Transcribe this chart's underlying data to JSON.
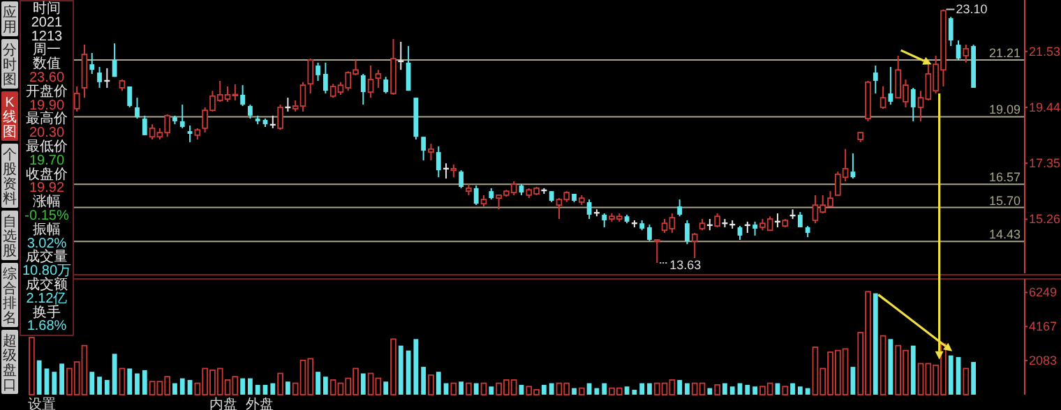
{
  "chart_data": [
    {
      "type": "candlestick",
      "categories": [
        null,
        null,
        null,
        null,
        null,
        null,
        null,
        null,
        null,
        null,
        null,
        null,
        null,
        null,
        null,
        null,
        null,
        null,
        null,
        null,
        null,
        null,
        null,
        null,
        null,
        null,
        null,
        null,
        null,
        null,
        null,
        null,
        null,
        null,
        null,
        null,
        null,
        null,
        null,
        null,
        null,
        null,
        null,
        null,
        null,
        null,
        null,
        null,
        null,
        null,
        null,
        null,
        null,
        null,
        null,
        null,
        null,
        null,
        null,
        null,
        null,
        null,
        null,
        null,
        null,
        null,
        null,
        null,
        null,
        null,
        null,
        null,
        null,
        null,
        null,
        null,
        null,
        null,
        null,
        null,
        null,
        null,
        null,
        null,
        null,
        null,
        null,
        null,
        null,
        null,
        null,
        null,
        null,
        null,
        null,
        null,
        null,
        null,
        null,
        null,
        null,
        null,
        null,
        null,
        null,
        null,
        null,
        null,
        null,
        null,
        null,
        null,
        null,
        null,
        null,
        null,
        null,
        null,
        null,
        null,
        null,
        null,
        null,
        null,
        null,
        null
      ],
      "ohlc": [
        null,
        null,
        null,
        null,
        null,
        null,
        [
          19.39,
          20.22,
          19.28,
          19.96
        ],
        [
          20.17,
          21.78,
          19.8,
          21.42
        ],
        [
          21.05,
          21.47,
          20.69,
          20.84
        ],
        [
          20.74,
          20.95,
          20.17,
          20.38
        ],
        [
          20.43,
          20.9,
          20.17,
          20.43
        ],
        [
          21.21,
          21.83,
          20.58,
          20.58
        ],
        [
          20.17,
          20.48,
          20.06,
          20.43
        ],
        [
          20.22,
          20.22,
          19.44,
          19.49
        ],
        [
          19.44,
          19.8,
          19.02,
          19.07
        ],
        [
          19.02,
          19.13,
          18.4,
          18.4
        ],
        [
          18.34,
          18.81,
          18.24,
          18.66
        ],
        [
          18.34,
          18.66,
          18.24,
          18.5
        ],
        [
          18.5,
          19.18,
          18.34,
          19.13
        ],
        [
          19.07,
          19.13,
          18.81,
          18.92
        ],
        [
          18.92,
          19.54,
          18.66,
          18.71
        ],
        [
          18.55,
          18.76,
          18.14,
          18.45
        ],
        [
          18.4,
          18.66,
          18.24,
          18.6
        ],
        [
          18.66,
          19.44,
          18.5,
          19.33
        ],
        [
          19.33,
          20.06,
          19.28,
          19.86
        ],
        [
          19.7,
          20.43,
          19.65,
          19.91
        ],
        [
          19.75,
          20.22,
          19.65,
          19.91
        ],
        [
          19.9,
          20.3,
          19.7,
          19.92
        ],
        [
          19.91,
          20.27,
          19.49,
          19.54
        ],
        [
          19.49,
          19.54,
          19.02,
          19.13
        ],
        [
          19.02,
          19.13,
          18.81,
          18.92
        ],
        [
          18.97,
          19.02,
          18.71,
          18.81
        ],
        [
          18.79,
          19.13,
          18.66,
          18.79
        ],
        [
          18.66,
          19.54,
          18.6,
          19.44
        ],
        [
          19.44,
          19.8,
          19.28,
          19.44
        ],
        [
          19.39,
          19.7,
          19.28,
          19.49
        ],
        [
          19.49,
          20.38,
          19.28,
          20.27
        ],
        [
          20.32,
          21.26,
          19.96,
          21.21
        ],
        [
          21.0,
          21.11,
          20.43,
          20.64
        ],
        [
          20.69,
          21.11,
          19.96,
          20.06
        ],
        [
          19.86,
          20.32,
          19.8,
          20.22
        ],
        [
          20.01,
          20.38,
          19.91,
          20.27
        ],
        [
          20.17,
          20.79,
          20.06,
          20.74
        ],
        [
          20.69,
          21.21,
          20.64,
          20.84
        ],
        [
          20.64,
          20.69,
          19.54,
          20.01
        ],
        [
          20.01,
          21.0,
          19.8,
          20.48
        ],
        [
          20.53,
          20.84,
          20.17,
          20.69
        ],
        [
          20.48,
          20.58,
          19.96,
          20.01
        ],
        [
          19.96,
          21.99,
          19.91,
          21.26
        ],
        [
          21.16,
          21.89,
          20.84,
          21.16
        ],
        [
          21.11,
          21.73,
          20.06,
          20.06
        ],
        [
          19.8,
          19.8,
          18.24,
          18.34
        ],
        [
          18.34,
          18.34,
          17.46,
          17.82
        ],
        [
          17.77,
          18.08,
          17.46,
          17.88
        ],
        [
          17.77,
          17.98,
          16.83,
          17.09
        ],
        [
          17.15,
          17.35,
          16.78,
          17.15
        ],
        [
          17.09,
          17.3,
          16.83,
          17.15
        ],
        [
          17.04,
          17.09,
          16.42,
          16.47
        ],
        [
          16.31,
          16.57,
          16.16,
          16.42
        ],
        [
          16.42,
          16.52,
          15.79,
          15.84
        ],
        [
          15.84,
          16.16,
          15.74,
          16.0
        ],
        [
          16.31,
          16.42,
          16.0,
          16.05
        ],
        [
          16.05,
          16.16,
          15.63,
          16.16
        ],
        [
          16.16,
          16.36,
          16.1,
          16.31
        ],
        [
          16.26,
          16.68,
          16.16,
          16.57
        ],
        [
          16.52,
          16.57,
          16.16,
          16.26
        ],
        [
          16.16,
          16.42,
          16.05,
          16.36
        ],
        [
          16.21,
          16.47,
          16.16,
          16.42
        ],
        [
          16.34,
          16.42,
          16.21,
          16.34
        ],
        [
          16.31,
          16.31,
          15.9,
          15.95
        ],
        [
          15.79,
          16.05,
          15.27,
          16.0
        ],
        [
          16.0,
          16.31,
          15.9,
          16.26
        ],
        [
          16.21,
          16.21,
          15.9,
          15.95
        ],
        [
          15.9,
          16.16,
          15.79,
          16.05
        ],
        [
          15.9,
          16.0,
          15.27,
          15.43
        ],
        [
          15.5,
          15.63,
          15.37,
          15.5
        ],
        [
          15.43,
          15.48,
          14.96,
          15.22
        ],
        [
          15.27,
          15.48,
          15.17,
          15.37
        ],
        [
          15.27,
          15.48,
          15.17,
          15.37
        ],
        [
          15.37,
          15.43,
          15.11,
          15.17
        ],
        [
          15.11,
          15.22,
          14.96,
          15.11
        ],
        [
          15.11,
          15.22,
          14.85,
          14.91
        ],
        [
          14.96,
          15.06,
          14.44,
          14.49
        ],
        [
          14.44,
          14.49,
          13.63,
          14.49
        ],
        [
          14.85,
          15.27,
          14.75,
          15.11
        ],
        [
          14.91,
          15.48,
          14.75,
          15.32
        ],
        [
          15.74,
          16.0,
          15.37,
          15.43
        ],
        [
          15.11,
          15.22,
          14.33,
          14.44
        ],
        [
          14.44,
          14.75,
          13.81,
          14.7
        ],
        [
          14.91,
          15.27,
          14.85,
          15.11
        ],
        [
          15.04,
          15.27,
          14.85,
          15.04
        ],
        [
          15.01,
          15.48,
          14.96,
          15.37
        ],
        [
          15.11,
          15.27,
          14.96,
          15.11
        ],
        [
          15.06,
          15.22,
          14.91,
          15.06
        ],
        [
          14.96,
          15.01,
          14.49,
          14.65
        ],
        [
          15.04,
          15.17,
          14.75,
          15.04
        ],
        [
          15.06,
          15.17,
          14.65,
          14.91
        ],
        [
          14.96,
          15.27,
          14.85,
          15.11
        ],
        [
          14.85,
          15.37,
          14.85,
          15.27
        ],
        [
          15.17,
          15.48,
          14.96,
          15.17
        ],
        [
          15.01,
          15.27,
          14.96,
          15.22
        ],
        [
          15.4,
          15.63,
          15.27,
          15.4
        ],
        [
          15.43,
          15.53,
          14.96,
          14.96
        ],
        [
          14.96,
          15.01,
          14.59,
          14.75
        ],
        [
          15.22,
          16.16,
          15.11,
          15.79
        ],
        [
          15.53,
          16.16,
          15.48,
          15.79
        ],
        [
          15.74,
          16.31,
          15.74,
          16.05
        ],
        [
          16.16,
          17.04,
          16.16,
          16.94
        ],
        [
          16.83,
          17.88,
          16.68,
          17.15
        ],
        [
          17.04,
          17.72,
          16.78,
          16.83
        ],
        [
          18.24,
          18.5,
          18.14,
          18.5
        ],
        [
          19.02,
          20.43,
          18.92,
          20.38
        ],
        [
          20.74,
          21.0,
          19.96,
          20.43
        ],
        [
          19.44,
          20.22,
          19.39,
          19.8
        ],
        [
          19.96,
          20.95,
          19.54,
          19.65
        ],
        [
          19.8,
          21.37,
          19.8,
          20.84
        ],
        [
          19.65,
          20.48,
          19.44,
          20.27
        ],
        [
          20.12,
          20.17,
          18.92,
          19.44
        ],
        [
          19.44,
          20.06,
          18.92,
          19.8
        ],
        [
          19.75,
          21.11,
          19.7,
          20.69
        ],
        [
          20.06,
          21.37,
          19.96,
          21.05
        ],
        [
          20.84,
          23.1,
          20.22,
          23.05
        ],
        [
          22.77,
          22.82,
          21.73,
          21.94
        ],
        [
          21.78,
          21.94,
          21.21,
          21.26
        ],
        [
          21.37,
          21.78,
          21.11,
          21.63
        ],
        [
          21.73,
          21.78,
          20.17,
          20.17
        ]
      ],
      "colors": [
        null,
        null,
        null,
        null,
        null,
        null,
        "#d03a36",
        "#d03a36",
        "#5ee6ec",
        "#5ee6ec",
        "#e6e6e6",
        "#5ee6ec",
        "#d03a36",
        "#5ee6ec",
        "#5ee6ec",
        "#5ee6ec",
        "#d03a36",
        "#d03a36",
        "#d03a36",
        "#5ee6ec",
        "#5ee6ec",
        "#5ee6ec",
        "#d03a36",
        "#d03a36",
        "#d03a36",
        "#d03a36",
        "#d03a36",
        "#d03a36",
        "#5ee6ec",
        "#5ee6ec",
        "#5ee6ec",
        "#5ee6ec",
        "#e6e6e6",
        "#d03a36",
        "#e6e6e6",
        "#d03a36",
        "#d03a36",
        "#d03a36",
        "#5ee6ec",
        "#5ee6ec",
        "#d03a36",
        "#d03a36",
        "#d03a36",
        "#d03a36",
        "#5ee6ec",
        "#d03a36",
        "#d03a36",
        "#5ee6ec",
        "#d03a36",
        "#e6e6e6",
        "#5ee6ec",
        "#5ee6ec",
        "#5ee6ec",
        "#d03a36",
        "#5ee6ec",
        "#e6e6e6",
        "#d03a36",
        "#5ee6ec",
        "#d03a36",
        "#5ee6ec",
        "#d03a36",
        "#5ee6ec",
        "#d03a36",
        "#d03a36",
        "#d03a36",
        "#5ee6ec",
        "#d03a36",
        "#d03a36",
        "#e6e6e6",
        "#5ee6ec",
        "#d03a36",
        "#d03a36",
        "#5ee6ec",
        "#d03a36",
        "#5ee6ec",
        "#e6e6e6",
        "#5ee6ec",
        "#d03a36",
        "#d03a36",
        "#5ee6ec",
        "#e6e6e6",
        "#5ee6ec",
        "#5ee6ec",
        "#d03a36",
        "#d03a36",
        "#d03a36",
        "#5ee6ec",
        "#5ee6ec",
        "#d03a36",
        "#d03a36",
        "#e6e6e6",
        "#d03a36",
        "#e6e6e6",
        "#e6e6e6",
        "#5ee6ec",
        "#e6e6e6",
        "#5ee6ec",
        "#d03a36",
        "#d03a36",
        "#e6e6e6",
        "#d03a36",
        "#e6e6e6",
        "#5ee6ec",
        "#5ee6ec",
        "#d03a36",
        "#d03a36",
        "#d03a36",
        "#d03a36",
        "#d03a36",
        "#5ee6ec",
        "#d03a36",
        "#d03a36",
        "#5ee6ec",
        "#d03a36",
        "#5ee6ec",
        "#d03a36",
        "#d03a36",
        "#5ee6ec",
        "#d03a36",
        "#d03a36",
        "#d03a36",
        "#d03a36",
        "#5ee6ec",
        "#5ee6ec",
        "#d03a36",
        "#5ee6ec"
      ],
      "ylim": [
        13.24,
        23.45
      ],
      "yticks": [
        {
          "value": 21.53,
          "label": "21.53"
        },
        {
          "value": 19.44,
          "label": "19.44"
        },
        {
          "value": 17.35,
          "label": "17.35"
        },
        {
          "value": 15.26,
          "label": "15.26"
        }
      ],
      "ref_lines": [
        {
          "axis": "y",
          "value": 21.21,
          "label": "21.21",
          "color": "#a9a48a"
        },
        {
          "axis": "y",
          "value": 19.09,
          "label": "19.09",
          "color": "#a9a48a"
        },
        {
          "axis": "y",
          "value": 16.57,
          "label": "16.57",
          "color": "#a9a48a"
        },
        {
          "axis": "y",
          "value": 15.7,
          "label": "15.70",
          "color": "#a9a48a"
        },
        {
          "axis": "y",
          "value": 14.43,
          "label": "14.43",
          "color": "#a9a48a"
        }
      ],
      "annotations": [
        "23.10",
        "13.63"
      ]
    },
    {
      "type": "bar",
      "categories": [
        null,
        null,
        null,
        null,
        null,
        null,
        null,
        null,
        null,
        null,
        null,
        null,
        null,
        null,
        null,
        null,
        null,
        null,
        null,
        null,
        null,
        null,
        null,
        null,
        null,
        null,
        null,
        null,
        null,
        null,
        null,
        null,
        null,
        null,
        null,
        null,
        null,
        null,
        null,
        null,
        null,
        null,
        null,
        null,
        null,
        null,
        null,
        null,
        null,
        null,
        null,
        null,
        null,
        null,
        null,
        null,
        null,
        null,
        null,
        null,
        null,
        null,
        null,
        null,
        null,
        null,
        null,
        null,
        null,
        null,
        null,
        null,
        null,
        null,
        null,
        null,
        null,
        null,
        null,
        null,
        null,
        null,
        null,
        null,
        null,
        null,
        null,
        null,
        null,
        null,
        null,
        null,
        null,
        null,
        null,
        null,
        null,
        null,
        null,
        null,
        null,
        null,
        null,
        null,
        null,
        null,
        null,
        null,
        null,
        null,
        null,
        null,
        null,
        null,
        null,
        null,
        null,
        null,
        null,
        null,
        null,
        null,
        null,
        null,
        null,
        null
      ],
      "values": [
        3500,
        2100,
        1600,
        1400,
        1900,
        1600,
        2000,
        3000,
        1400,
        1100,
        900,
        2500,
        1600,
        1600,
        1300,
        1500,
        800,
        800,
        1100,
        700,
        1000,
        900,
        700,
        1600,
        1500,
        1600,
        900,
        1100,
        1000,
        1000,
        600,
        600,
        700,
        1300,
        800,
        700,
        2100,
        2200,
        1400,
        1100,
        900,
        700,
        1000,
        1600,
        1300,
        1300,
        1000,
        800,
        3400,
        3000,
        2700,
        3400,
        1700,
        1200,
        1400,
        700,
        700,
        800,
        700,
        700,
        700,
        500,
        700,
        900,
        900,
        600,
        500,
        300,
        600,
        700,
        700,
        700,
        400,
        400,
        700,
        400,
        700,
        400,
        400,
        500,
        300,
        700,
        700,
        700,
        700,
        900,
        900,
        700,
        700,
        700,
        400,
        600,
        700,
        500,
        700,
        600,
        500,
        500,
        700,
        700,
        500,
        700,
        500,
        400,
        2900,
        1600,
        2600,
        2700,
        2800,
        1700,
        3800,
        6300,
        6200,
        3600,
        3400,
        3000,
        2700,
        3000,
        1900,
        1900,
        1800,
        3100,
        2400,
        2300,
        1600,
        2000
      ],
      "colors": [
        "#d03a36",
        "#5ee6ec",
        "#5ee6ec",
        "#5ee6ec",
        "#5ee6ec",
        "#d03a36",
        "#d03a36",
        "#d03a36",
        "#5ee6ec",
        "#5ee6ec",
        "#5ee6ec",
        "#5ee6ec",
        "#d03a36",
        "#5ee6ec",
        "#5ee6ec",
        "#5ee6ec",
        "#d03a36",
        "#d03a36",
        "#d03a36",
        "#5ee6ec",
        "#5ee6ec",
        "#5ee6ec",
        "#d03a36",
        "#d03a36",
        "#d03a36",
        "#d03a36",
        "#d03a36",
        "#d03a36",
        "#5ee6ec",
        "#5ee6ec",
        "#5ee6ec",
        "#5ee6ec",
        "#5ee6ec",
        "#d03a36",
        "#5ee6ec",
        "#d03a36",
        "#d03a36",
        "#d03a36",
        "#5ee6ec",
        "#5ee6ec",
        "#d03a36",
        "#d03a36",
        "#d03a36",
        "#d03a36",
        "#5ee6ec",
        "#d03a36",
        "#d03a36",
        "#5ee6ec",
        "#d03a36",
        "#5ee6ec",
        "#5ee6ec",
        "#5ee6ec",
        "#5ee6ec",
        "#d03a36",
        "#5ee6ec",
        "#5ee6ec",
        "#d03a36",
        "#5ee6ec",
        "#d03a36",
        "#5ee6ec",
        "#d03a36",
        "#5ee6ec",
        "#d03a36",
        "#d03a36",
        "#d03a36",
        "#5ee6ec",
        "#d03a36",
        "#d03a36",
        "#5ee6ec",
        "#5ee6ec",
        "#d03a36",
        "#d03a36",
        "#5ee6ec",
        "#d03a36",
        "#5ee6ec",
        "#5ee6ec",
        "#5ee6ec",
        "#d03a36",
        "#d03a36",
        "#5ee6ec",
        "#5ee6ec",
        "#5ee6ec",
        "#5ee6ec",
        "#d03a36",
        "#d03a36",
        "#d03a36",
        "#5ee6ec",
        "#5ee6ec",
        "#d03a36",
        "#d03a36",
        "#5ee6ec",
        "#d03a36",
        "#5ee6ec",
        "#5ee6ec",
        "#5ee6ec",
        "#5ee6ec",
        "#5ee6ec",
        "#d03a36",
        "#d03a36",
        "#5ee6ec",
        "#d03a36",
        "#5ee6ec",
        "#5ee6ec",
        "#5ee6ec",
        "#d03a36",
        "#d03a36",
        "#d03a36",
        "#d03a36",
        "#d03a36",
        "#5ee6ec",
        "#d03a36",
        "#d03a36",
        "#5ee6ec",
        "#d03a36",
        "#5ee6ec",
        "#d03a36",
        "#d03a36",
        "#5ee6ec",
        "#d03a36",
        "#d03a36",
        "#d03a36",
        "#d03a36",
        "#5ee6ec",
        "#5ee6ec",
        "#d03a36",
        "#5ee6ec"
      ],
      "ylim": [
        0,
        7080
      ],
      "yticks": [
        2083,
        4167,
        6249
      ]
    },
    {
      "type": "other",
      "annotations": [
        "应用",
        "分时图",
        "K线图",
        "个股资料",
        "自选股",
        "综合排名",
        "超级盘口"
      ],
      "colors": [
        "#c8c8c8",
        "#c8c8c8",
        "#c0302c",
        "#c8c8c8",
        "#c8c8c8",
        "#c8c8c8",
        "#c8c8c8"
      ]
    },
    {
      "type": "other",
      "annotations": [
        "时间",
        "2021",
        "1213",
        "周一",
        "数值",
        "23.60",
        "开盘价",
        "19.90",
        "最高价",
        "20.30",
        "最低价",
        "19.70",
        "收盘价",
        "19.92",
        "涨幅",
        "-0.15%",
        "振幅",
        "3.02%",
        "成交量",
        "10.80万",
        "成交额",
        "2.12亿",
        "换手",
        "1.68%"
      ],
      "colors": [
        "#e8e8e8",
        "#e8e8e8",
        "#e8e8e8",
        "#e8e8e8",
        "#e8e8e8",
        "#e04040",
        "#e8e8e8",
        "#e04040",
        "#e8e8e8",
        "#e04040",
        "#e8e8e8",
        "#3cc03c",
        "#e8e8e8",
        "#e04040",
        "#e8e8e8",
        "#3cc03c",
        "#e8e8e8",
        "#5ee6ec",
        "#e8e8e8",
        "#5ee6ec",
        "#e8e8e8",
        "#5ee6ec",
        "#e8e8e8",
        "#5ee6ec"
      ]
    },
    {
      "type": "other",
      "annotations": [
        "设置",
        "内盘",
        "外盘"
      ],
      "colors": [
        "#d8d8d8",
        "#d8d8d8",
        "#d8d8d8"
      ]
    }
  ]
}
